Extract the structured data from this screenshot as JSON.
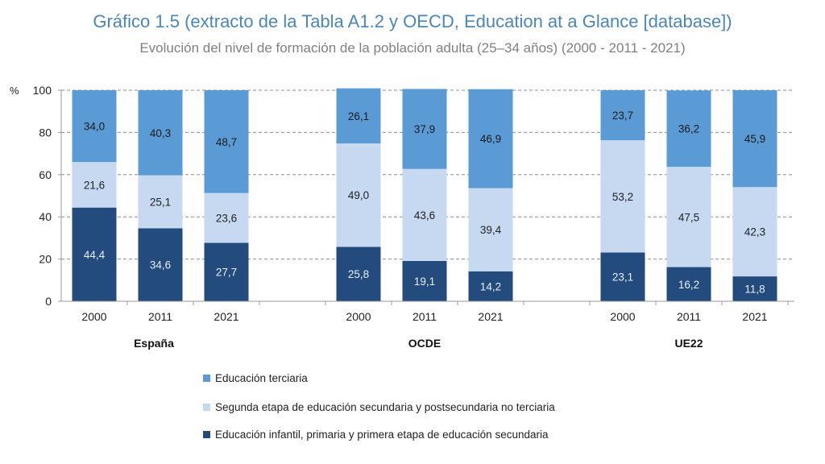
{
  "chart_data": {
    "type": "bar",
    "stacked": true,
    "title": "Gráfico 1.5 (extracto de la Tabla A1.2 y OECD, Education at a Glance [database])",
    "subtitle": "Evolución del nivel de formación de la población adulta (25–34 años) (2000 - 2011 - 2021)",
    "ylabel": "%",
    "ylim": [
      0,
      100
    ],
    "yticks": [
      0,
      20,
      40,
      60,
      80,
      100
    ],
    "grid": true,
    "legend_position": "bottom",
    "groups": [
      {
        "name": "España",
        "categories": [
          "2000",
          "2011",
          "2021"
        ]
      },
      {
        "name": "OCDE",
        "categories": [
          "2000",
          "2011",
          "2021"
        ]
      },
      {
        "name": "UE22",
        "categories": [
          "2000",
          "2011",
          "2021"
        ]
      }
    ],
    "series": [
      {
        "name": "Educación infantil, primaria y primera etapa de educación secundaria",
        "color": "#234b7e",
        "label_color": "#e8eef6",
        "values": [
          44.4,
          34.6,
          27.7,
          25.8,
          19.1,
          14.2,
          23.1,
          16.2,
          11.8
        ],
        "labels": [
          "44,4",
          "34,6",
          "27,7",
          "25,8",
          "19,1",
          "14,2",
          "23,1",
          "16,2",
          "11,8"
        ]
      },
      {
        "name": "Segunda etapa de educación secundaria y postsecundaria no terciaria",
        "color": "#c6d9f1",
        "label_color": "#222222",
        "values": [
          21.6,
          25.1,
          23.6,
          49.0,
          43.6,
          39.4,
          53.2,
          47.5,
          42.3
        ],
        "labels": [
          "21,6",
          "25,1",
          "23,6",
          "49,0",
          "43,6",
          "39,4",
          "53,2",
          "47,5",
          "42,3"
        ]
      },
      {
        "name": "Educación terciaria",
        "color": "#5b9bd5",
        "label_color": "#1a1a1a",
        "values": [
          34.0,
          40.3,
          48.7,
          26.1,
          37.9,
          46.9,
          23.7,
          36.2,
          45.9
        ],
        "labels": [
          "34,0",
          "40,3",
          "48,7",
          "26,1",
          "37,9",
          "46,9",
          "23,7",
          "36,2",
          "45,9"
        ]
      }
    ],
    "legend_order": [
      2,
      1,
      0
    ]
  }
}
